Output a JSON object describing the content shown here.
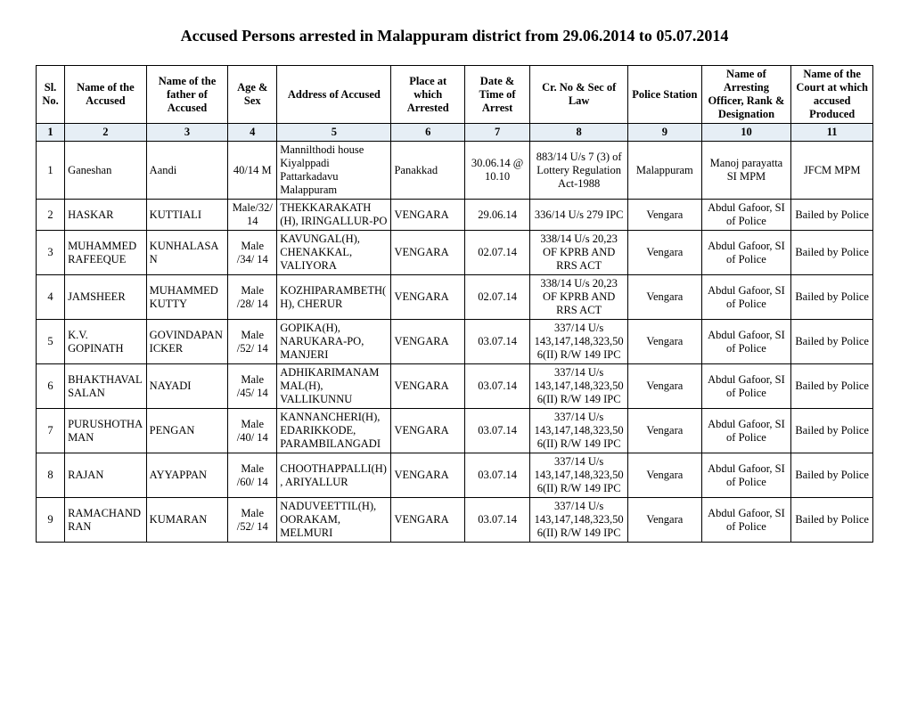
{
  "title": "Accused Persons arrested in Malappuram district from 29.06.2014 to 05.07.2014",
  "headers": {
    "sl": "Sl. No.",
    "name": "Name of the Accused",
    "father": "Name of the father of Accused",
    "age": "Age & Sex",
    "address": "Address of Accused",
    "place": "Place at which Arrested",
    "date": "Date & Time of Arrest",
    "crno": "Cr. No & Sec of Law",
    "ps": "Police Station",
    "officer": "Name of Arresting Officer, Rank & Designation",
    "court": "Name of the Court at which accused Produced"
  },
  "colnums": [
    "1",
    "2",
    "3",
    "4",
    "5",
    "6",
    "7",
    "8",
    "9",
    "10",
    "11"
  ],
  "rows": [
    {
      "sl": "1",
      "name": "Ganeshan",
      "father": "Aandi",
      "age": "40/14 M",
      "address": "Mannilthodi house Kiyalppadi Pattarkadavu Malappuram",
      "place": "Panakkad",
      "date": "30.06.14 @ 10.10",
      "crno": "883/14 U/s 7 (3) of Lottery Regulation Act-1988",
      "ps": "Malappuram",
      "officer": "Manoj parayatta SI MPM",
      "court": "JFCM MPM"
    },
    {
      "sl": "2",
      "name": "HASKAR",
      "father": "KUTTIALI",
      "age": "Male/32/14",
      "address": "THEKKARAKATH (H), IRINGALLUR-PO",
      "place": "VENGARA",
      "date": "29.06.14",
      "crno": "336/14 U/s 279 IPC",
      "ps": "Vengara",
      "officer": "Abdul Gafoor, SI of Police",
      "court": "Bailed by Police"
    },
    {
      "sl": "3",
      "name": "MUHAMMED RAFEEQUE",
      "father": "KUNHALASAN",
      "age": "Male /34/ 14",
      "address": "KAVUNGAL(H), CHENAKKAL, VALIYORA",
      "place": "VENGARA",
      "date": "02.07.14",
      "crno": "338/14 U/s 20,23 OF KPRB AND RRS ACT",
      "ps": "Vengara",
      "officer": "Abdul Gafoor, SI of Police",
      "court": "Bailed by Police"
    },
    {
      "sl": "4",
      "name": "JAMSHEER",
      "father": "MUHAMMED KUTTY",
      "age": "Male /28/ 14",
      "address": "KOZHIPARAMBETH(H), CHERUR",
      "place": "VENGARA",
      "date": "02.07.14",
      "crno": "338/14 U/s 20,23 OF KPRB AND RRS ACT",
      "ps": "Vengara",
      "officer": "Abdul Gafoor, SI of Police",
      "court": "Bailed by Police"
    },
    {
      "sl": "5",
      "name": "K.V. GOPINATH",
      "father": "GOVINDAPANICKER",
      "age": "Male /52/ 14",
      "address": "GOPIKA(H), NARUKARA-PO, MANJERI",
      "place": "VENGARA",
      "date": "03.07.14",
      "crno": "337/14 U/s 143,147,148,323,506(II) R/W 149 IPC",
      "ps": "Vengara",
      "officer": "Abdul Gafoor, SI of Police",
      "court": "Bailed by Police"
    },
    {
      "sl": "6",
      "name": "BHAKTHAVALSALAN",
      "father": "NAYADI",
      "age": "Male /45/ 14",
      "address": "ADHIKARIMANAMMAL(H), VALLIKUNNU",
      "place": "VENGARA",
      "date": "03.07.14",
      "crno": "337/14 U/s 143,147,148,323,506(II) R/W 149 IPC",
      "ps": "Vengara",
      "officer": "Abdul Gafoor, SI of Police",
      "court": "Bailed by Police"
    },
    {
      "sl": "7",
      "name": "PURUSHOTHAMAN",
      "father": "PENGAN",
      "age": "Male /40/ 14",
      "address": "KANNANCHERI(H), EDARIKKODE, PARAMBILANGADI",
      "place": "VENGARA",
      "date": "03.07.14",
      "crno": "337/14 U/s 143,147,148,323,506(II) R/W 149 IPC",
      "ps": "Vengara",
      "officer": "Abdul Gafoor, SI of Police",
      "court": "Bailed by Police"
    },
    {
      "sl": "8",
      "name": "RAJAN",
      "father": "AYYAPPAN",
      "age": "Male /60/ 14",
      "address": "CHOOTHAPPALLI(H), ARIYALLUR",
      "place": "VENGARA",
      "date": "03.07.14",
      "crno": "337/14 U/s 143,147,148,323,506(II) R/W 149 IPC",
      "ps": "Vengara",
      "officer": "Abdul Gafoor, SI of Police",
      "court": "Bailed by Police"
    },
    {
      "sl": "9",
      "name": "RAMACHANDRAN",
      "father": "KUMARAN",
      "age": "Male /52/ 14",
      "address": "NADUVEETTIL(H), OORAKAM, MELMURI",
      "place": "VENGARA",
      "date": "03.07.14",
      "crno": "337/14 U/s 143,147,148,323,506(II) R/W 149 IPC",
      "ps": "Vengara",
      "officer": "Abdul Gafoor, SI of Police",
      "court": "Bailed by Police"
    }
  ]
}
